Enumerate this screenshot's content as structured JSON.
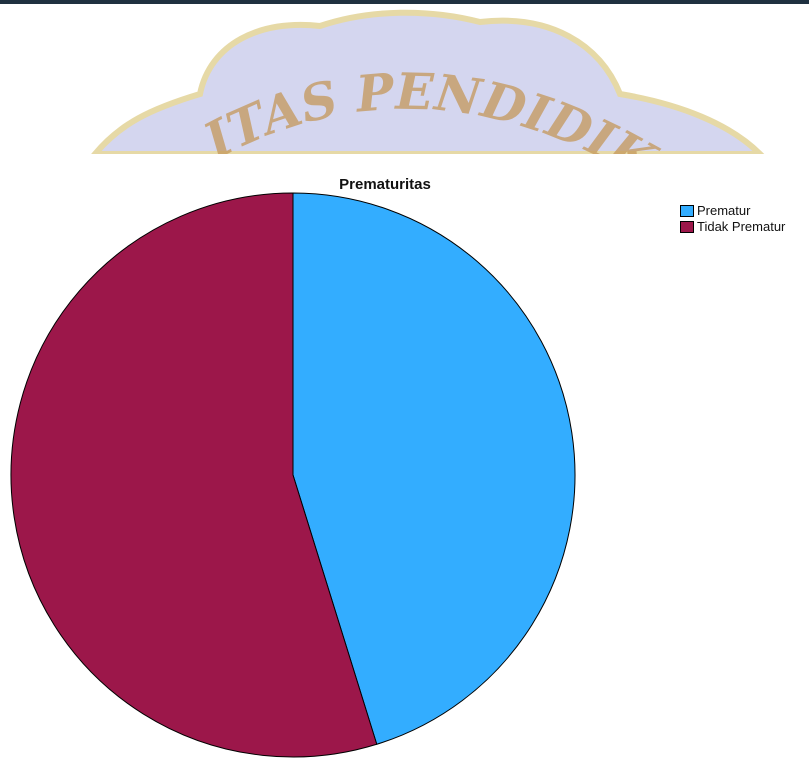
{
  "chart_data": {
    "type": "pie",
    "title": "Prematuritas",
    "labels": [
      "Prematur",
      "Tidak Prematur"
    ],
    "values": [
      45.2,
      54.8
    ],
    "colors": [
      "#33adff",
      "#9c174a"
    ],
    "start_angle_deg": 0,
    "direction": "clockwise",
    "legend_position": "top-right"
  },
  "watermark": {
    "text": "ITAS PENDIDIKAN G"
  }
}
